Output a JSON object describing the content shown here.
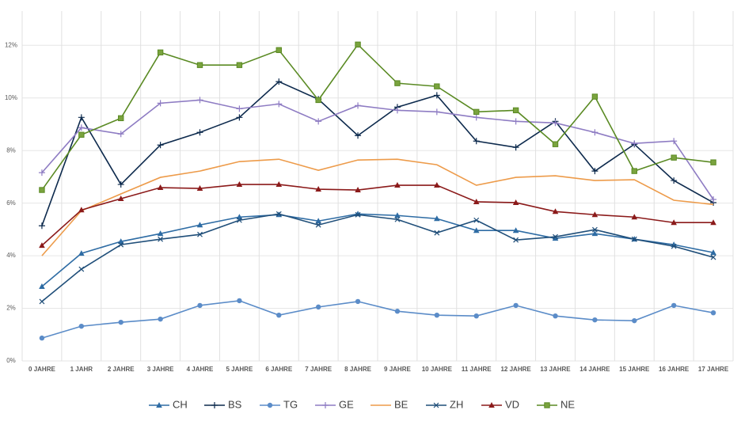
{
  "chart_data": {
    "type": "line",
    "categories": [
      "0 JAHRE",
      "1 JAHR",
      "2 JAHRE",
      "3 JAHRE",
      "4 JAHRE",
      "5 JAHRE",
      "6 JAHRE",
      "7 JAHRE",
      "8 JAHRE",
      "9 JAHRE",
      "10 JAHRE",
      "11 JAHRE",
      "12 JAHRE",
      "13 JAHRE",
      "14 JAHRE",
      "15 JAHRE",
      "16 JAHRE",
      "17 JAHRE"
    ],
    "ylim": [
      0,
      12.4
    ],
    "yticks": [
      {
        "value": 0,
        "label": "0%"
      },
      {
        "value": 2,
        "label": "2%"
      },
      {
        "value": 4,
        "label": "4%"
      },
      {
        "value": 6,
        "label": "6%"
      },
      {
        "value": 8,
        "label": "8%"
      },
      {
        "value": 10,
        "label": "10%"
      },
      {
        "value": 12,
        "label": "12%"
      }
    ],
    "grid": true,
    "legend": "bottom",
    "series": [
      {
        "name": "CH",
        "color": "#2e6ca4",
        "marker": "triangle",
        "values": [
          2.83,
          4.09,
          4.54,
          4.84,
          5.17,
          5.47,
          5.56,
          5.32,
          5.59,
          5.53,
          5.41,
          4.96,
          4.96,
          4.66,
          4.84,
          4.63,
          4.42,
          4.12
        ]
      },
      {
        "name": "BS",
        "color": "#0d2a4d",
        "marker": "plus",
        "values": [
          5.14,
          9.26,
          6.71,
          8.21,
          8.69,
          9.26,
          10.62,
          9.95,
          8.57,
          9.65,
          10.1,
          8.36,
          8.12,
          9.11,
          7.22,
          8.24,
          6.86,
          6.02
        ]
      },
      {
        "name": "TG",
        "color": "#5b8cc8",
        "marker": "circle",
        "values": [
          0.87,
          1.32,
          1.47,
          1.59,
          2.11,
          2.29,
          1.74,
          2.05,
          2.26,
          1.89,
          1.74,
          1.71,
          2.11,
          1.71,
          1.56,
          1.53,
          2.11,
          1.83
        ]
      },
      {
        "name": "GE",
        "color": "#8e7cc3",
        "marker": "plus",
        "values": [
          7.16,
          8.87,
          8.63,
          9.8,
          9.92,
          9.59,
          9.77,
          9.11,
          9.71,
          9.53,
          9.47,
          9.26,
          9.11,
          9.05,
          8.69,
          8.27,
          8.36,
          6.14
        ]
      },
      {
        "name": "BE",
        "color": "#ed9b4a",
        "marker": "none",
        "values": [
          4.0,
          5.71,
          6.35,
          6.98,
          7.22,
          7.58,
          7.67,
          7.25,
          7.64,
          7.67,
          7.46,
          6.68,
          6.98,
          7.04,
          6.86,
          6.89,
          6.11,
          5.95
        ]
      },
      {
        "name": "ZH",
        "color": "#1f4e79",
        "marker": "x",
        "values": [
          2.26,
          3.49,
          4.42,
          4.63,
          4.81,
          5.35,
          5.59,
          5.17,
          5.56,
          5.38,
          4.87,
          5.35,
          4.6,
          4.72,
          4.99,
          4.63,
          4.36,
          3.94
        ]
      },
      {
        "name": "VD",
        "color": "#8b1a1a",
        "marker": "triangle",
        "values": [
          4.39,
          5.74,
          6.17,
          6.59,
          6.56,
          6.71,
          6.71,
          6.53,
          6.5,
          6.68,
          6.68,
          6.05,
          6.02,
          5.68,
          5.56,
          5.47,
          5.26,
          5.26
        ]
      },
      {
        "name": "NE",
        "color": "#5a8a23",
        "marker": "square",
        "values": [
          6.5,
          8.6,
          9.23,
          11.73,
          11.25,
          11.25,
          11.82,
          9.92,
          12.03,
          10.56,
          10.44,
          9.47,
          9.53,
          8.24,
          10.05,
          7.22,
          7.73,
          7.55
        ]
      }
    ]
  }
}
